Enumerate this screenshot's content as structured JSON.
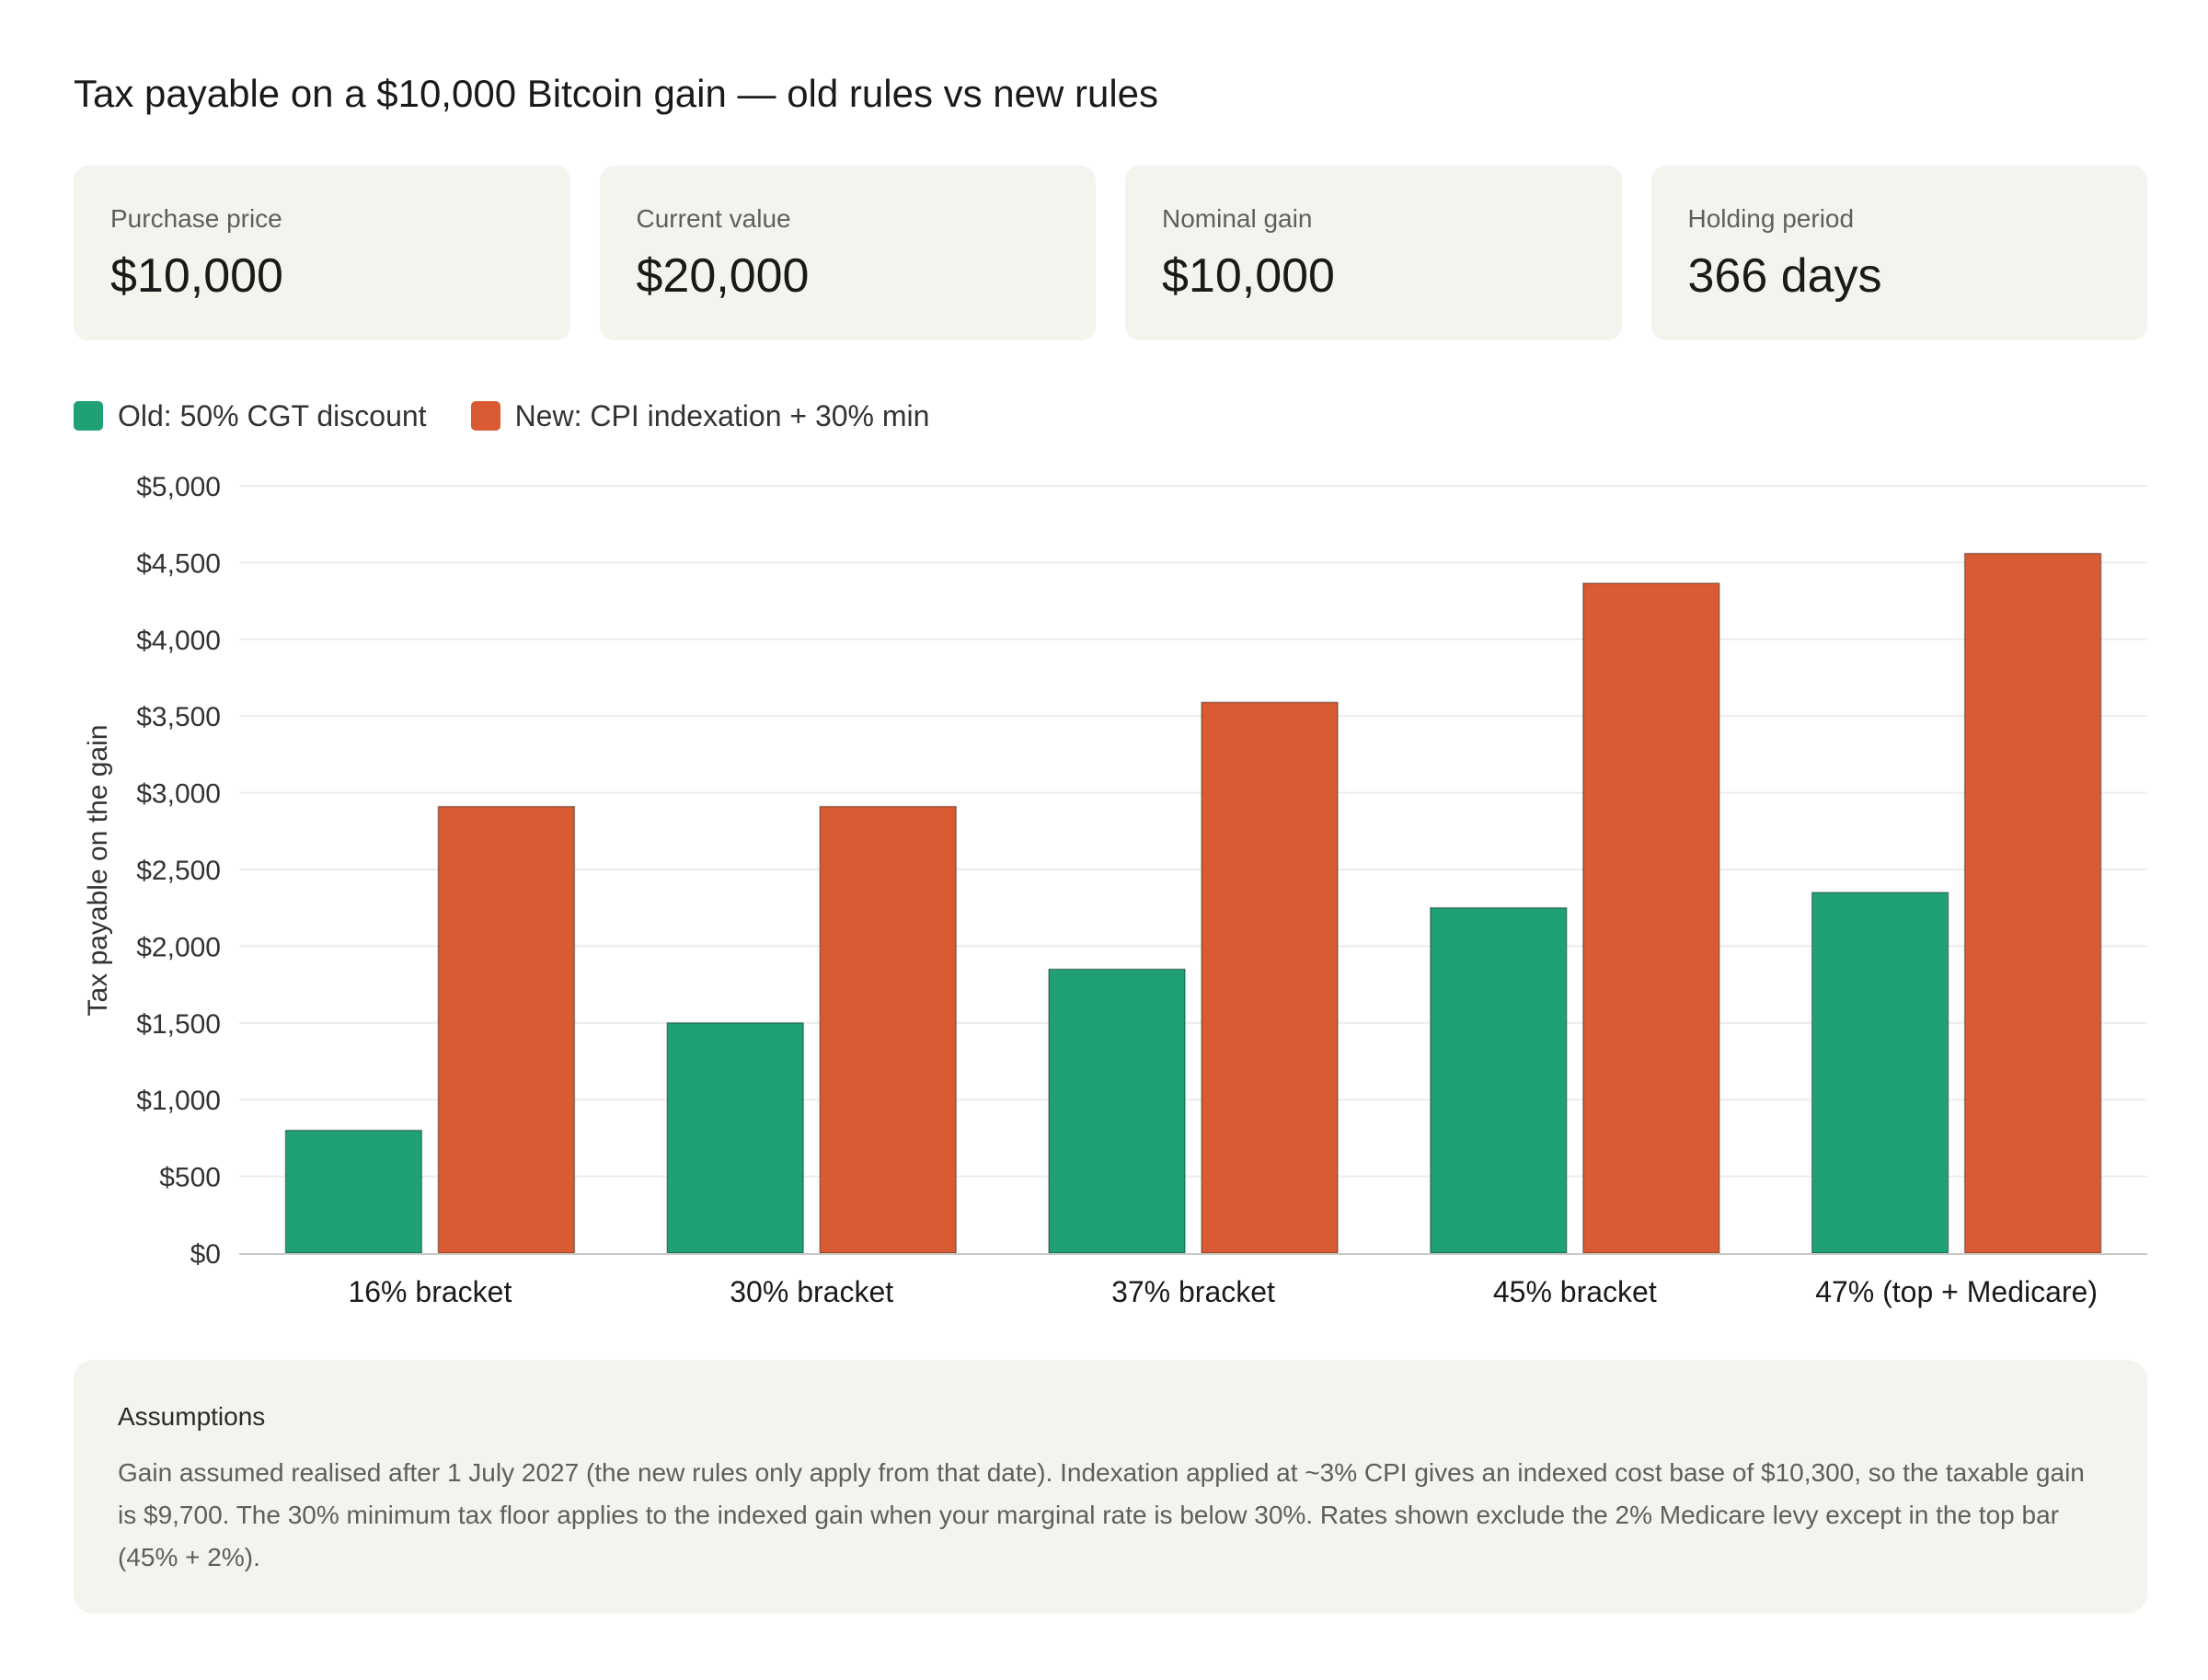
{
  "title": "Tax payable on a $10,000 Bitcoin gain — old rules vs new rules",
  "cards": [
    {
      "label": "Purchase price",
      "value": "$10,000"
    },
    {
      "label": "Current value",
      "value": "$20,000"
    },
    {
      "label": "Nominal gain",
      "value": "$10,000"
    },
    {
      "label": "Holding period",
      "value": "366 days"
    }
  ],
  "legend": [
    {
      "label": "Old: 50% CGT discount",
      "color": "#1fa077"
    },
    {
      "label": "New: CPI indexation + 30% min",
      "color": "#d95b33"
    }
  ],
  "chart_data": {
    "type": "bar",
    "title": "",
    "xlabel": "",
    "ylabel": "Tax payable on the gain",
    "ylim": [
      0,
      5000
    ],
    "yticks": [
      0,
      500,
      1000,
      1500,
      2000,
      2500,
      3000,
      3500,
      4000,
      4500,
      5000
    ],
    "ytick_labels": [
      "$0",
      "$500",
      "$1,000",
      "$1,500",
      "$2,000",
      "$2,500",
      "$3,000",
      "$3,500",
      "$4,000",
      "$4,500",
      "$5,000"
    ],
    "grid": true,
    "legend_position": "top-left",
    "categories": [
      "16% bracket",
      "30% bracket",
      "37% bracket",
      "45% bracket",
      "47% (top + Medicare)"
    ],
    "series": [
      {
        "name": "Old: 50% CGT discount",
        "color": "#1fa077",
        "values": [
          800,
          1500,
          1850,
          2250,
          2350
        ]
      },
      {
        "name": "New: CPI indexation + 30% min",
        "color": "#d95b33",
        "values": [
          2910,
          2910,
          3589,
          4365,
          4559
        ]
      }
    ]
  },
  "assumptions": {
    "title": "Assumptions",
    "body": "Gain assumed realised after 1 July 2027 (the new rules only apply from that date). Indexation applied at ~3% CPI gives an indexed cost base of $10,300, so the taxable gain is $9,700. The 30% minimum tax floor applies to the indexed gain when your marginal rate is below 30%. Rates shown exclude the 2% Medicare levy except in the top bar (45% + 2%)."
  }
}
